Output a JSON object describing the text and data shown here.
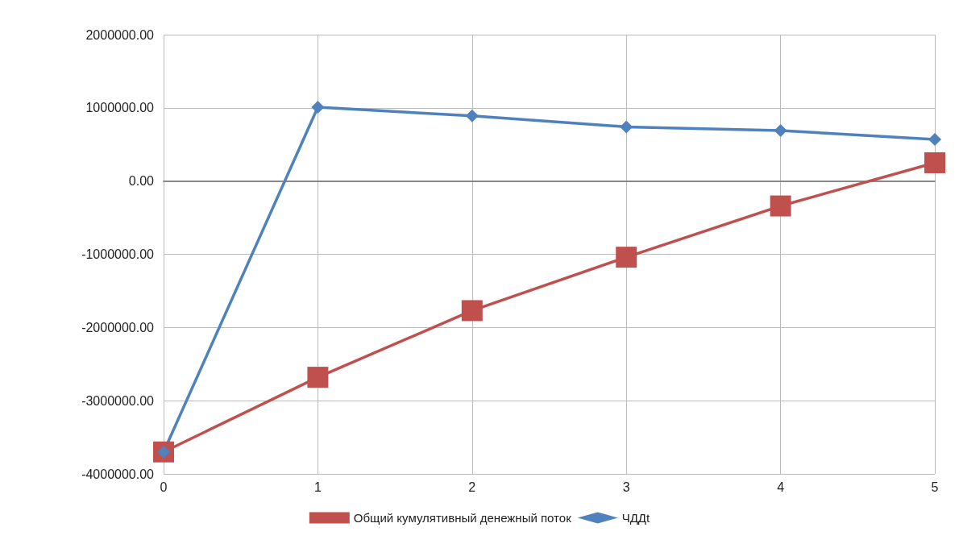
{
  "chart_data": {
    "type": "line",
    "x": [
      0,
      1,
      2,
      3,
      4,
      5
    ],
    "xlim": [
      0,
      5
    ],
    "xticks": [
      0,
      1,
      2,
      3,
      4,
      5
    ],
    "ylim": [
      -4000000,
      2000000
    ],
    "yticks": [
      {
        "value": -4000000,
        "label": "-4000000.00"
      },
      {
        "value": -3000000,
        "label": "-3000000.00"
      },
      {
        "value": -2000000,
        "label": "-2000000.00"
      },
      {
        "value": -1000000,
        "label": "-1000000.00"
      },
      {
        "value": 0,
        "label": "0.00"
      },
      {
        "value": 1000000,
        "label": "1000000.00"
      },
      {
        "value": 2000000,
        "label": "2000000.00"
      }
    ],
    "grid": true,
    "legend": "bottom",
    "series": [
      {
        "name": "Общий кумулятивный денежный поток",
        "color": "#c0504d",
        "marker": "square",
        "values": [
          -3700000,
          -2680000,
          -1770000,
          -1040000,
          -340000,
          250000
        ]
      },
      {
        "name": "ЧДДt",
        "color": "#4f81bd",
        "marker": "diamond",
        "values": [
          -3700000,
          1010000,
          890000,
          740000,
          690000,
          570000
        ]
      }
    ]
  }
}
